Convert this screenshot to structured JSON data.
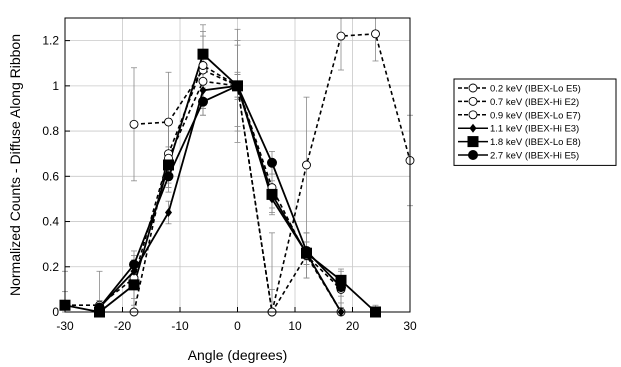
{
  "chart_data": {
    "type": "line",
    "xlabel": "Angle (degrees)",
    "ylabel": "Normalized Counts - Diffuse Along Ribbon",
    "xlim": [
      -30,
      30
    ],
    "ylim": [
      0,
      1.3
    ],
    "xticks": [
      "-30",
      "-20",
      "-10",
      "0",
      "10",
      "20",
      "30"
    ],
    "yticks": [
      "0",
      "0.2",
      "0.4",
      "0.6",
      "0.8",
      "1",
      "1.2"
    ],
    "grid": true,
    "legend_position": "right",
    "series": [
      {
        "name": "0.2 keV (IBEX-Lo E5)",
        "line": "dashed",
        "marker": "open-circle",
        "color": "#000000",
        "x": [
          -18,
          -12,
          -6,
          0,
          6,
          12,
          18,
          24,
          30
        ],
        "y": [
          0.83,
          0.84,
          1.07,
          1.0,
          0.0,
          0.65,
          1.22,
          1.23,
          0.67
        ],
        "err": [
          0.25,
          0.22,
          0.2,
          0.25,
          0.35,
          0.3,
          0.15,
          0.12,
          0.2
        ]
      },
      {
        "name": "0.7 keV (IBEX-Hi E2)",
        "line": "dashed",
        "marker": "open-circle",
        "color": "#000000",
        "x": [
          -18,
          -12,
          -6,
          0,
          6,
          12,
          18
        ],
        "y": [
          0.0,
          0.7,
          1.09,
          1.0,
          0.0,
          0.25,
          0.0
        ],
        "err": [
          0.1,
          0.15,
          0.15,
          0.18,
          0.1,
          0.1,
          0.1
        ]
      },
      {
        "name": "0.9 keV (IBEX-Lo E7)",
        "line": "dashed",
        "marker": "open-circle",
        "color": "#000000",
        "x": [
          -30,
          -24,
          -18,
          -12,
          -6,
          0,
          6,
          12,
          18
        ],
        "y": [
          0.03,
          0.03,
          0.15,
          0.68,
          1.02,
          1.0,
          0.55,
          0.25,
          0.1
        ],
        "err": [
          0.15,
          0.15,
          0.12,
          0.15,
          0.12,
          0.2,
          0.12,
          0.1,
          0.08
        ]
      },
      {
        "name": "1.1 keV (IBEX-Hi E3)",
        "line": "solid",
        "marker": "diamond",
        "color": "#000000",
        "x": [
          -24,
          -18,
          -12,
          -6,
          0,
          6,
          12,
          18
        ],
        "y": [
          0.02,
          0.18,
          0.44,
          0.98,
          1.0,
          0.5,
          0.26,
          0.0
        ],
        "err": [
          0.03,
          0.05,
          0.05,
          0.08,
          0.05,
          0.06,
          0.05,
          0.04
        ]
      },
      {
        "name": "1.8 keV (IBEX-Lo E8)",
        "line": "solid",
        "marker": "filled-square",
        "color": "#000000",
        "x": [
          -30,
          -24,
          -18,
          -12,
          -6,
          0,
          6,
          12,
          18,
          24
        ],
        "y": [
          0.03,
          0.0,
          0.12,
          0.65,
          1.14,
          1.0,
          0.52,
          0.26,
          0.14,
          0.0
        ],
        "err": [
          0.06,
          0.05,
          0.06,
          0.08,
          0.08,
          0.06,
          0.06,
          0.05,
          0.05,
          0.03
        ]
      },
      {
        "name": "2.7 keV (IBEX-Hi E5)",
        "line": "solid",
        "marker": "filled-circle",
        "color": "#000000",
        "x": [
          -24,
          -18,
          -12,
          -6,
          0,
          6,
          12,
          18
        ],
        "y": [
          0.02,
          0.21,
          0.6,
          0.93,
          1.0,
          0.66,
          0.27,
          0.11
        ],
        "err": [
          0.03,
          0.04,
          0.05,
          0.06,
          0.05,
          0.05,
          0.04,
          0.04
        ]
      }
    ]
  }
}
